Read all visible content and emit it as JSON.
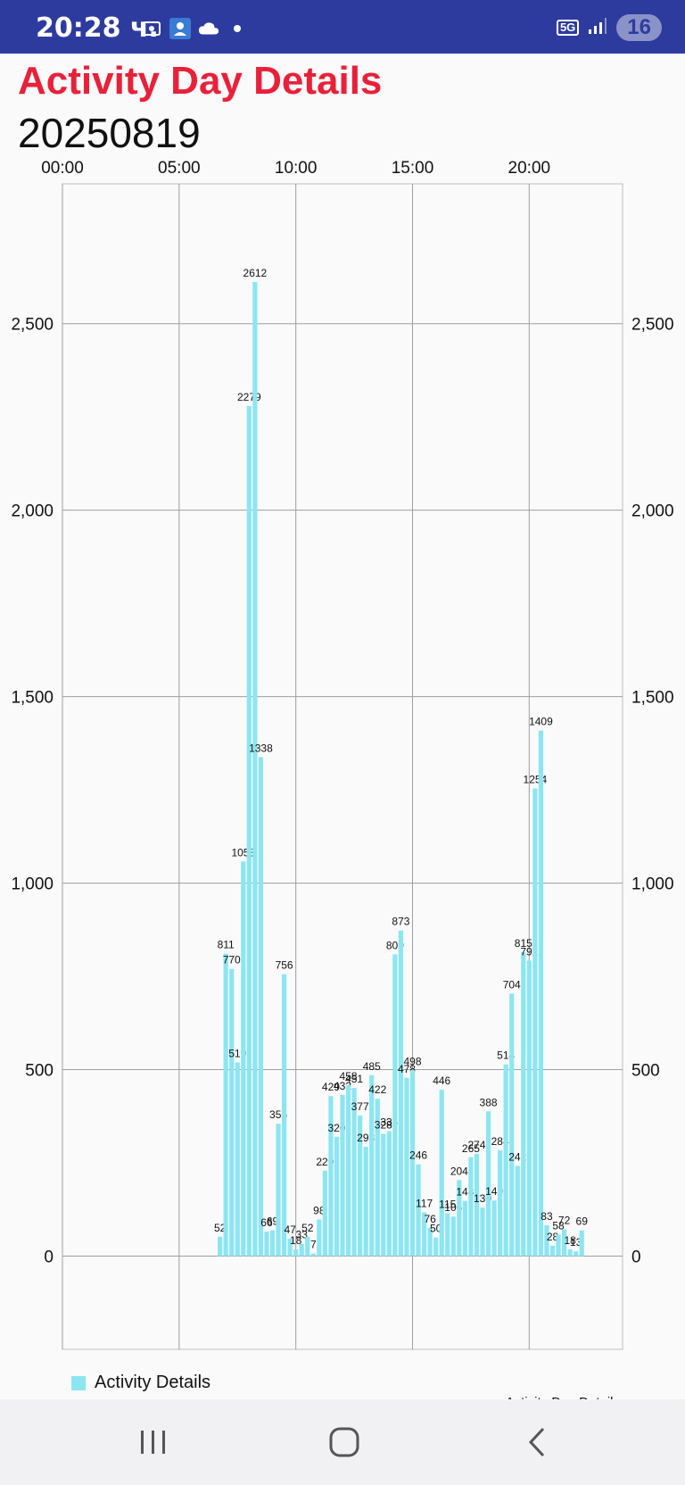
{
  "status_bar": {
    "time": "20:28 ч.",
    "network": "5G",
    "battery": "16",
    "icons": [
      "screenshot-icon",
      "profile-app-icon",
      "cloud-icon",
      "dot-icon",
      "signal-icon"
    ]
  },
  "header": {
    "title": "Activity Day Details",
    "date": "20250819"
  },
  "chart_data": {
    "type": "bar",
    "title": "",
    "description_label": "Activity Day Details",
    "x_axis": {
      "position": "top",
      "range_hours": [
        0,
        24
      ],
      "tick_labels": [
        "00:00",
        "05:00",
        "10:00",
        "15:00",
        "20:00"
      ]
    },
    "y_axis": {
      "range": [
        -250,
        2875
      ],
      "tick_labels": [
        "0",
        "500",
        "1,000",
        "1,500",
        "2,000",
        "2,500"
      ],
      "left_and_right": true
    },
    "grid": true,
    "legend": "bottom-left",
    "series": [
      {
        "name": "Activity Details",
        "color": "#8ce6f2",
        "x_hours": [
          6.75,
          7.0,
          7.25,
          7.5,
          7.75,
          8.0,
          8.25,
          8.5,
          8.75,
          9.0,
          9.25,
          9.5,
          9.75,
          10.0,
          10.25,
          10.5,
          10.75,
          11.0,
          11.25,
          11.5,
          11.75,
          12.0,
          12.25,
          12.5,
          12.75,
          13.0,
          13.25,
          13.5,
          13.75,
          14.0,
          14.25,
          14.5,
          14.75,
          15.0,
          15.25,
          15.5,
          15.75,
          16.0,
          16.25,
          16.5,
          16.75,
          17.0,
          17.25,
          17.5,
          17.75,
          18.0,
          18.25,
          18.5,
          18.75,
          19.0,
          19.25,
          19.5,
          19.75,
          20.0,
          20.25,
          20.5,
          20.75,
          21.0,
          21.25,
          21.5,
          21.75,
          22.0,
          22.25
        ],
        "values": [
          52,
          811,
          770,
          519,
          1058,
          2279,
          2612,
          1338,
          66,
          69,
          355,
          756,
          47,
          18,
          33,
          52,
          7,
          98,
          229,
          429,
          320,
          432,
          458,
          451,
          377,
          293,
          485,
          422,
          328,
          335,
          809,
          873,
          478,
          498,
          246,
          117,
          76,
          50,
          446,
          115,
          106,
          204,
          148,
          265,
          274,
          130,
          388,
          149,
          284,
          514,
          704,
          242,
          815,
          792,
          1254,
          1409,
          83,
          28,
          58,
          72,
          18,
          13,
          69
        ],
        "data_labels": [
          "52",
          "811",
          "770",
          "519",
          "1058",
          "2279",
          "2612",
          "1338",
          "66",
          "69",
          "355",
          "756",
          "47",
          "18",
          "33",
          "52",
          "7",
          "98",
          "229",
          "429",
          "320",
          "432",
          "458",
          "451",
          "377",
          "293",
          "485",
          "422",
          "328",
          "335",
          "809",
          "873",
          "478",
          "498",
          "246",
          "117",
          "76",
          "50",
          "446",
          "115",
          "106",
          "204",
          "148",
          "265",
          "274",
          "130",
          "388",
          "149",
          "284",
          "514",
          "704",
          "242",
          "815",
          "792",
          "1254",
          "1409",
          "83",
          "28",
          "58",
          "72",
          "18",
          "13",
          "69"
        ]
      }
    ]
  },
  "legend": {
    "label": "Activity Details"
  },
  "nav_bar": {
    "buttons": [
      "recents-button",
      "home-button",
      "back-button"
    ]
  }
}
